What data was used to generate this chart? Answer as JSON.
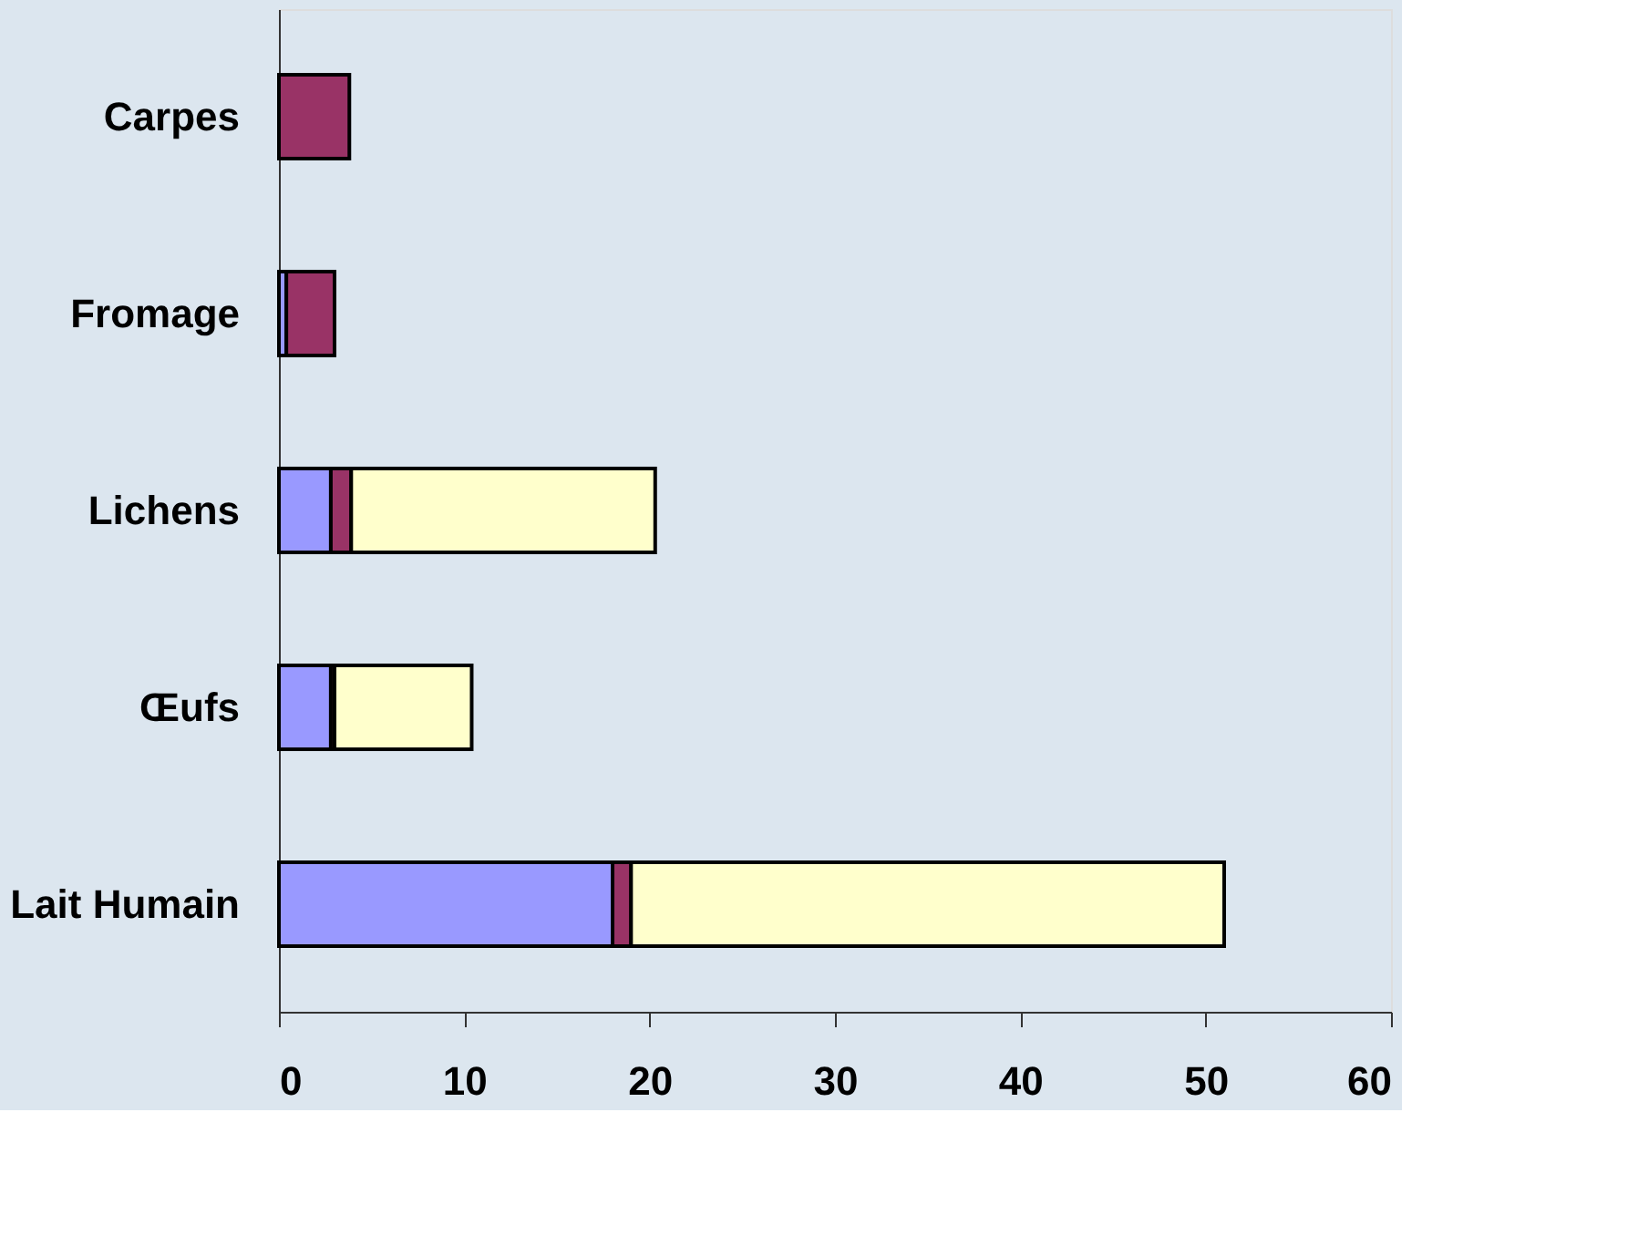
{
  "chart_data": {
    "type": "bar",
    "orientation": "horizontal",
    "stacked": true,
    "categories": [
      "Carpes",
      "Fromage",
      "Lichens",
      "Œufs",
      "Lait Humain"
    ],
    "series": [
      {
        "color": "#9999ff",
        "values": [
          null,
          0.4,
          2.8,
          2.8,
          18
        ]
      },
      {
        "color": "#993366",
        "values": [
          3.8,
          2.6,
          1.1,
          0.2,
          1
        ]
      },
      {
        "color": "#ffffcc",
        "values": [
          null,
          null,
          16.4,
          7.4,
          32
        ]
      }
    ],
    "xlim": [
      0,
      60
    ],
    "xticks": [
      0,
      10,
      20,
      30,
      40,
      50,
      60
    ]
  }
}
